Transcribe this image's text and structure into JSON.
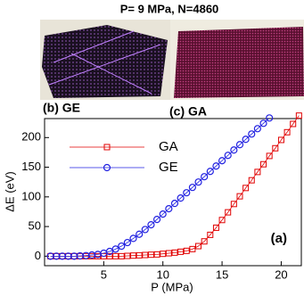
{
  "figure_title": "P= 9 MPa, N=4860",
  "panels": {
    "b": "(b) GE",
    "c": "(c) GA"
  },
  "chart_data": {
    "type": "line",
    "xlabel": "P (MPa)",
    "ylabel": "ΔE (eV)",
    "annotation": "(a)",
    "xlim": [
      0,
      21.7
    ],
    "ylim": [
      -16,
      232
    ],
    "xticks": [
      5,
      10,
      15,
      20
    ],
    "yticks": [
      0,
      50,
      100,
      150,
      200
    ],
    "legend": "upper left",
    "series": [
      {
        "name": "GA",
        "color": "#e00000",
        "marker": "square",
        "x": [
          0.5,
          1,
          1.5,
          2,
          2.5,
          3,
          3.5,
          4,
          4.5,
          5,
          5.5,
          6,
          6.5,
          7,
          7.5,
          8,
          8.5,
          9,
          9.5,
          10,
          10.5,
          11,
          11.5,
          12,
          12.5,
          13,
          13.5,
          14,
          14.5,
          15,
          15.5,
          16,
          16.5,
          17,
          17.5,
          18,
          18.5,
          19,
          19.5,
          20,
          20.5,
          21,
          21.5
        ],
        "values": [
          0,
          0,
          0,
          0,
          0,
          0,
          0,
          0,
          0,
          0,
          0,
          0,
          0,
          0.5,
          1,
          1.5,
          2,
          2.5,
          3,
          4,
          5,
          6,
          7.5,
          9,
          12,
          17,
          25,
          36,
          48,
          61,
          74,
          88,
          101,
          115,
          128,
          142,
          155,
          169,
          182,
          196,
          209,
          223,
          237
        ]
      },
      {
        "name": "GE",
        "color": "#2020e0",
        "marker": "circle",
        "x": [
          0.5,
          1,
          1.5,
          2,
          2.5,
          3,
          3.5,
          4,
          4.5,
          5,
          5.5,
          6,
          6.5,
          7,
          7.5,
          8,
          8.5,
          9,
          9.5,
          10,
          10.5,
          11,
          11.5,
          12,
          12.5,
          13,
          13.5,
          14,
          14.5,
          15,
          15.5,
          16,
          16.5,
          17,
          17.5,
          18,
          18.5,
          19
        ],
        "values": [
          0,
          0,
          0,
          0,
          0,
          0.5,
          1,
          2,
          3,
          5,
          8,
          12,
          17,
          23,
          30,
          37,
          45,
          53,
          62,
          71,
          80,
          89,
          98,
          107,
          116,
          125,
          134,
          143,
          152,
          161,
          170,
          179,
          188,
          197,
          206,
          215,
          224,
          233
        ]
      }
    ]
  }
}
